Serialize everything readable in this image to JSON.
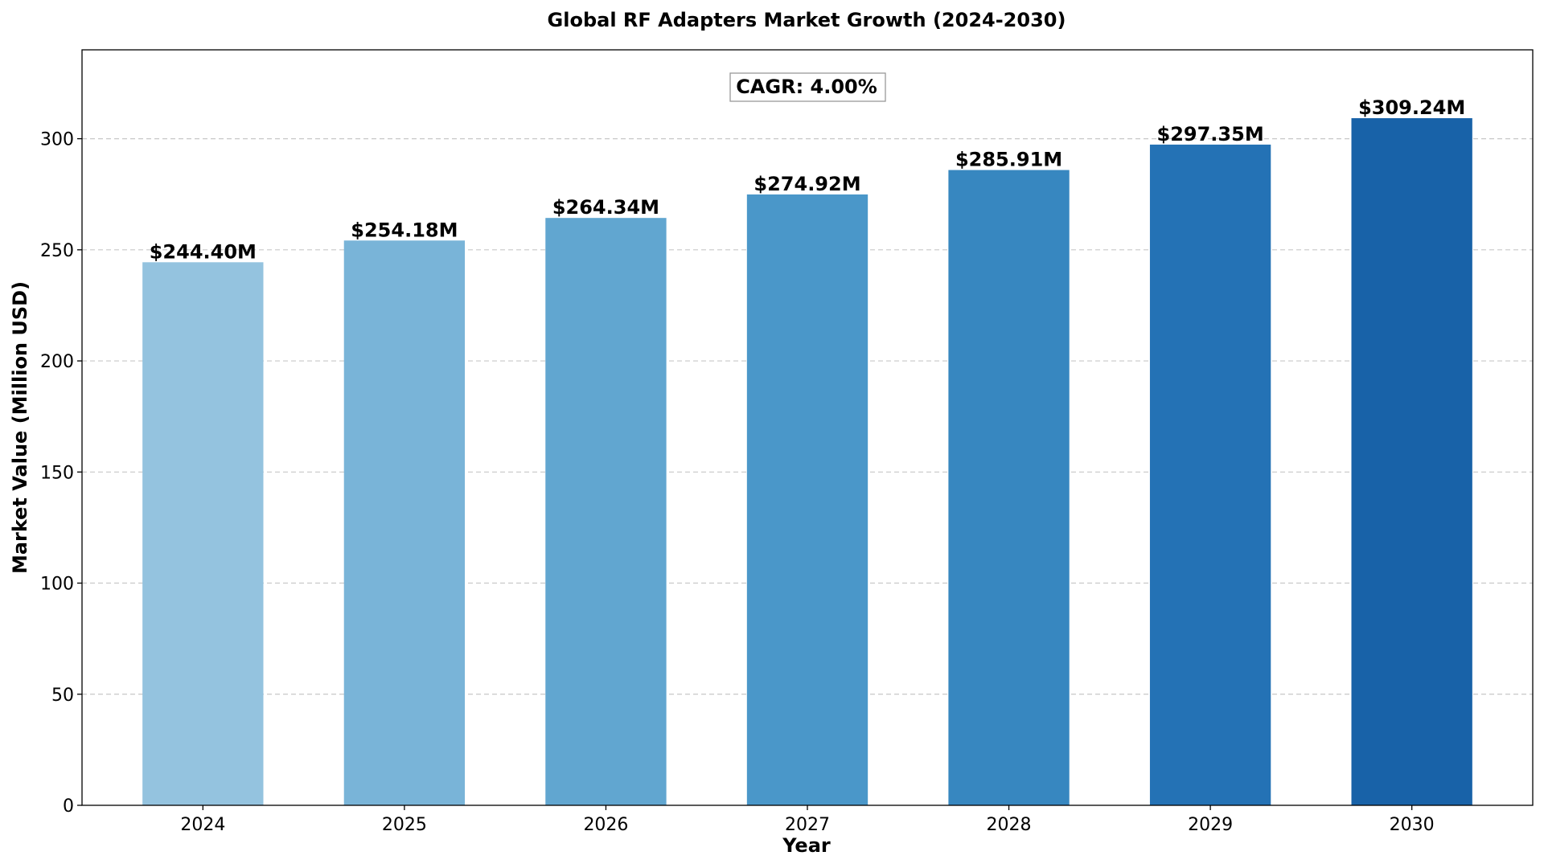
{
  "chart_data": {
    "type": "bar",
    "title": "Global RF Adapters Market Growth (2024-2030)",
    "xlabel": "Year",
    "ylabel": "Market Value (Million USD)",
    "categories": [
      "2024",
      "2025",
      "2026",
      "2027",
      "2028",
      "2029",
      "2030"
    ],
    "values": [
      244.4,
      254.18,
      264.34,
      274.92,
      285.91,
      297.35,
      309.24
    ],
    "data_labels": [
      "$244.40M",
      "$254.18M",
      "$264.34M",
      "$274.92M",
      "$285.91M",
      "$297.35M",
      "$309.24M"
    ],
    "ylim": [
      0,
      340
    ],
    "yticks": [
      0,
      50,
      100,
      150,
      200,
      250,
      300
    ],
    "grid": "y-dashed",
    "annotation": "CAGR: 4.00%",
    "colors": [
      "#94c3df",
      "#79b4d8",
      "#61a6d0",
      "#4a97c9",
      "#3787c0",
      "#2472b5",
      "#1862a8"
    ]
  }
}
